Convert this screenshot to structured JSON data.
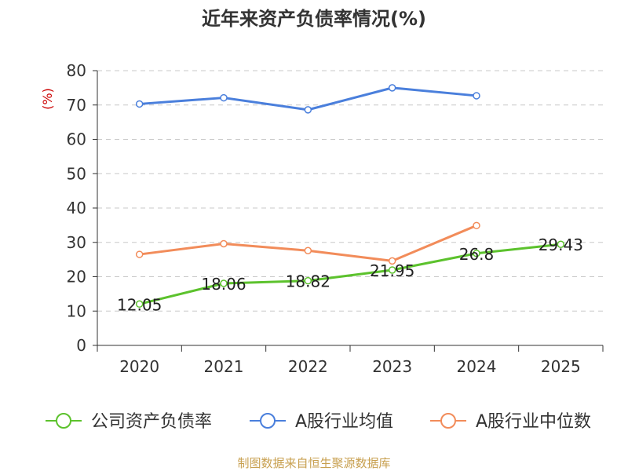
{
  "chart_data": {
    "type": "line",
    "title": "近年来资产负债率情况(%)",
    "ylabel": "(%)",
    "xlabel": "",
    "ylim": [
      0,
      80
    ],
    "yticks": [
      0,
      10,
      20,
      30,
      40,
      50,
      60,
      70,
      80
    ],
    "categories": [
      "2020",
      "2021",
      "2022",
      "2023",
      "2024",
      "2025"
    ],
    "grid": "horizontal-dashed",
    "legend_position": "bottom",
    "series": [
      {
        "name": "公司资产负债率",
        "color": "#5cc22d",
        "values": [
          12.05,
          18.06,
          18.82,
          21.95,
          26.8,
          29.43
        ],
        "labels": [
          "12.05",
          "18.06",
          "18.82",
          "21.95",
          "26.8",
          "29.43"
        ]
      },
      {
        "name": "A股行业均值",
        "color": "#4a7fdc",
        "values": [
          70.3,
          72.1,
          68.6,
          75.0,
          72.7,
          null
        ]
      },
      {
        "name": "A股行业中位数",
        "color": "#f28c5a",
        "values": [
          26.5,
          29.6,
          27.6,
          24.6,
          34.9,
          null
        ]
      }
    ]
  },
  "footer": {
    "source": "制图数据来自恒生聚源数据库",
    "source_color": "#c8a050"
  }
}
